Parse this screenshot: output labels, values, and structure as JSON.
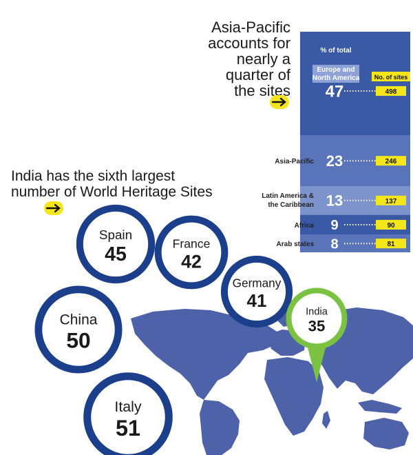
{
  "headline_regions": {
    "lines": [
      "Asia-Pacific",
      "accounts for",
      "nearly a",
      "quarter of",
      "the sites"
    ]
  },
  "headline_countries": {
    "lines": [
      "India has the sixth largest",
      "number of World Heritage Sites"
    ]
  },
  "colors": {
    "panel_dark": "#3b5aa6",
    "panel_mid": "#5a74b9",
    "panel_light": "#7d93cb",
    "ring": "#1c3f8c",
    "india_ring": "#7cc242",
    "highlight": "#f5e61c",
    "map": "#4d62a9"
  },
  "icons": {
    "pointer": "arrow-right-icon"
  },
  "chart_data": [
    {
      "type": "bar",
      "categories": [
        "Europe and North America",
        "Asia-Pacific",
        "Latin America & the Caribbean",
        "Africa",
        "Arab states"
      ],
      "pct_header": "% of total",
      "sites_header": "No. of sites",
      "series": [
        {
          "name": "% of total",
          "values": [
            47,
            23,
            13,
            9,
            8
          ]
        },
        {
          "name": "No. of sites",
          "values": [
            498,
            246,
            137,
            90,
            81
          ]
        }
      ]
    },
    {
      "type": "bubble",
      "categories": [
        "Spain",
        "France",
        "Germany",
        "China",
        "Italy",
        "India"
      ],
      "values": [
        45,
        42,
        41,
        50,
        51,
        35
      ]
    }
  ]
}
